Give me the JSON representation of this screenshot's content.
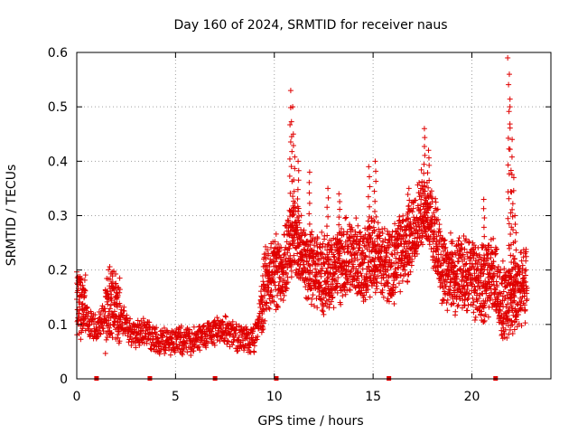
{
  "chart_data": {
    "type": "scatter",
    "title": "Day 160 of 2024, SRMTID for receiver naus",
    "xlabel": "GPS time / hours",
    "ylabel": "SRMTID / TECUs",
    "xlim": [
      0,
      24
    ],
    "ylim": [
      0,
      0.6
    ],
    "x_ticks": [
      0,
      5,
      10,
      15,
      20
    ],
    "x_tick_labels": [
      "0",
      "5",
      "10",
      "15",
      "20"
    ],
    "y_ticks": [
      0,
      0.1,
      0.2,
      0.3,
      0.4,
      0.5,
      0.6
    ],
    "y_tick_labels": [
      "0",
      "0.1",
      "0.2",
      "0.3",
      "0.4",
      "0.5",
      "0.6"
    ],
    "grid": true,
    "marker": "+",
    "color": "#e00000",
    "baseline_markers_x": [
      1.0,
      3.7,
      7.0,
      10.1,
      15.8,
      21.2
    ],
    "series": [
      {
        "name": "SRMTID",
        "trend": [
          [
            0.0,
            0.13
          ],
          [
            0.3,
            0.14
          ],
          [
            0.6,
            0.1
          ],
          [
            1.0,
            0.09
          ],
          [
            1.3,
            0.11
          ],
          [
            1.6,
            0.13
          ],
          [
            2.0,
            0.14
          ],
          [
            2.3,
            0.11
          ],
          [
            2.6,
            0.09
          ],
          [
            3.0,
            0.08
          ],
          [
            3.5,
            0.09
          ],
          [
            4.0,
            0.07
          ],
          [
            4.5,
            0.07
          ],
          [
            5.0,
            0.07
          ],
          [
            5.5,
            0.07
          ],
          [
            6.0,
            0.07
          ],
          [
            6.5,
            0.08
          ],
          [
            7.0,
            0.09
          ],
          [
            7.5,
            0.09
          ],
          [
            8.0,
            0.08
          ],
          [
            8.5,
            0.07
          ],
          [
            9.0,
            0.07
          ],
          [
            9.3,
            0.12
          ],
          [
            9.6,
            0.18
          ],
          [
            10.0,
            0.2
          ],
          [
            10.4,
            0.2
          ],
          [
            10.7,
            0.24
          ],
          [
            11.0,
            0.26
          ],
          [
            11.5,
            0.22
          ],
          [
            12.0,
            0.2
          ],
          [
            12.5,
            0.19
          ],
          [
            13.0,
            0.2
          ],
          [
            13.5,
            0.22
          ],
          [
            14.0,
            0.23
          ],
          [
            14.5,
            0.2
          ],
          [
            15.0,
            0.24
          ],
          [
            15.5,
            0.21
          ],
          [
            16.0,
            0.21
          ],
          [
            16.5,
            0.24
          ],
          [
            17.0,
            0.26
          ],
          [
            17.5,
            0.32
          ],
          [
            18.0,
            0.28
          ],
          [
            18.5,
            0.21
          ],
          [
            19.0,
            0.19
          ],
          [
            19.5,
            0.19
          ],
          [
            20.0,
            0.19
          ],
          [
            20.5,
            0.17
          ],
          [
            21.0,
            0.2
          ],
          [
            21.5,
            0.14
          ],
          [
            22.0,
            0.15
          ],
          [
            22.5,
            0.17
          ],
          [
            22.8,
            0.18
          ]
        ],
        "spikes": [
          [
            10.8,
            0.53
          ],
          [
            10.9,
            0.5
          ],
          [
            11.0,
            0.45
          ],
          [
            11.2,
            0.4
          ],
          [
            11.8,
            0.38
          ],
          [
            12.7,
            0.35
          ],
          [
            14.8,
            0.39
          ],
          [
            15.1,
            0.4
          ],
          [
            17.6,
            0.46
          ],
          [
            17.8,
            0.42
          ],
          [
            21.85,
            0.59
          ],
          [
            21.9,
            0.56
          ],
          [
            21.95,
            0.5
          ],
          [
            22.0,
            0.44
          ],
          [
            22.1,
            0.37
          ],
          [
            22.2,
            0.3
          ],
          [
            20.6,
            0.33
          ],
          [
            16.8,
            0.35
          ],
          [
            13.3,
            0.34
          ]
        ]
      }
    ]
  }
}
